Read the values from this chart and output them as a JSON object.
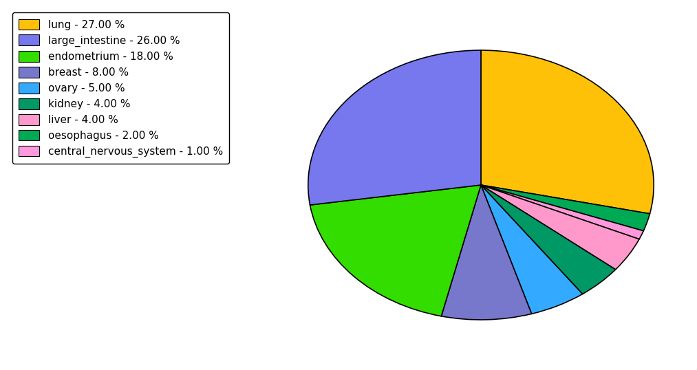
{
  "labels": [
    "lung",
    "large_intestine",
    "endometrium",
    "breast",
    "ovary",
    "kidney",
    "liver",
    "oesophagus",
    "central_nervous_system"
  ],
  "values": [
    27.0,
    26.0,
    18.0,
    8.0,
    5.0,
    4.0,
    4.0,
    2.0,
    1.0
  ],
  "colors": [
    "#FFC107",
    "#7777EE",
    "#33DD00",
    "#7777CC",
    "#33AAFF",
    "#009966",
    "#FF99CC",
    "#00AA55",
    "#FF99DD"
  ],
  "legend_labels": [
    "lung - 27.00 %",
    "large_intestine - 26.00 %",
    "endometrium - 18.00 %",
    "breast - 8.00 %",
    "ovary - 5.00 %",
    "kidney - 4.00 %",
    "liver - 4.00 %",
    "oesophagus - 2.00 %",
    "central_nervous_system - 1.00 %"
  ],
  "pie_order": [
    0,
    7,
    8,
    6,
    5,
    4,
    3,
    2,
    1
  ],
  "startangle": 90,
  "figsize": [
    10.13,
    5.38
  ],
  "dpi": 100
}
